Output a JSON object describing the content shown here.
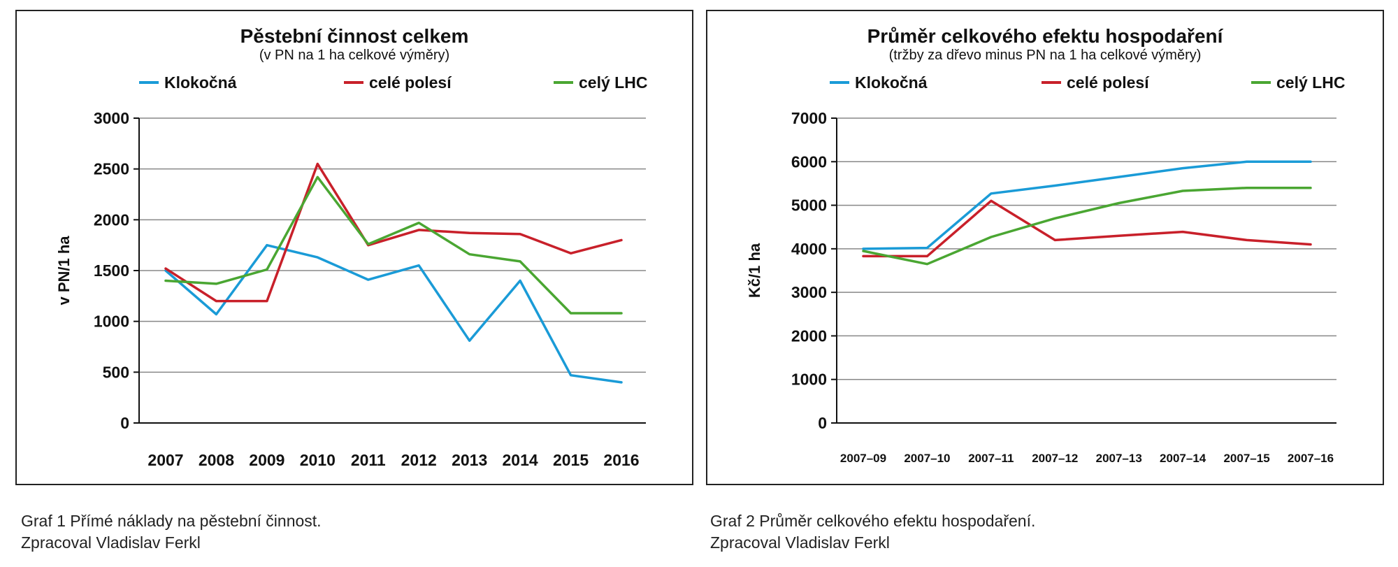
{
  "chart_data": [
    {
      "type": "line",
      "title": "Pěstební činnost celkem",
      "subtitle": "(v PN na 1 ha celkové výměry)",
      "xlabel": "",
      "ylabel": "v PN/1 ha",
      "ylim": [
        0,
        3000
      ],
      "yticks": [
        "3000",
        "2500",
        "2000",
        "1500",
        "1000",
        "500",
        "0"
      ],
      "ytick_values": [
        3000,
        2500,
        2000,
        1500,
        1000,
        500,
        0
      ],
      "categories": [
        "2007",
        "2008",
        "2009",
        "2010",
        "2011",
        "2012",
        "2013",
        "2014",
        "2015",
        "2016"
      ],
      "grid": true,
      "legend_position": "top",
      "series": [
        {
          "name": "Klokočná",
          "color": "#1a9bd7",
          "values": [
            1500,
            1070,
            1750,
            1630,
            1410,
            1550,
            810,
            1400,
            470,
            400
          ]
        },
        {
          "name": "celé polesí",
          "color": "#c8202a",
          "values": [
            1520,
            1200,
            1200,
            2550,
            1750,
            1900,
            1870,
            1860,
            1670,
            1800
          ]
        },
        {
          "name": "celý LHC",
          "color": "#4aa632",
          "values": [
            1400,
            1370,
            1510,
            2420,
            1760,
            1970,
            1660,
            1590,
            1080,
            1080
          ]
        }
      ]
    },
    {
      "type": "line",
      "title": "Průměr celkového efektu hospodaření",
      "subtitle": "(tržby za dřevo minus PN na 1 ha celkové výměry)",
      "xlabel": "",
      "ylabel": "Kč/1 ha",
      "ylim": [
        0,
        7000
      ],
      "yticks": [
        "7000",
        "6000",
        "5000",
        "4000",
        "3000",
        "2000",
        "1000",
        "0"
      ],
      "ytick_values": [
        7000,
        6000,
        5000,
        4000,
        3000,
        2000,
        1000,
        0
      ],
      "categories": [
        "2007–09",
        "2007–10",
        "2007–11",
        "2007–12",
        "2007–13",
        "2007–14",
        "2007–15",
        "2007–16"
      ],
      "grid": true,
      "legend_position": "top",
      "series": [
        {
          "name": "Klokočná",
          "color": "#1a9bd7",
          "values": [
            4000,
            4020,
            5270,
            5450,
            5650,
            5850,
            6000,
            6000
          ]
        },
        {
          "name": "celé polesí",
          "color": "#c8202a",
          "values": [
            3830,
            3830,
            5100,
            4200,
            4300,
            4390,
            4200,
            4100
          ]
        },
        {
          "name": "celý LHC",
          "color": "#4aa632",
          "values": [
            3950,
            3650,
            4270,
            4700,
            5050,
            5330,
            5400,
            5400
          ]
        }
      ]
    }
  ],
  "captions": {
    "graph1_line1": "Graf 1 Přímé náklady na pěstební činnost.",
    "graph1_line2": "Zpracoval Vladislav Ferkl",
    "graph2_line1": "Graf 2 Průměr celkového efektu hospodaření.",
    "graph2_line2": "Zpracoval Vladislav Ferkl"
  }
}
